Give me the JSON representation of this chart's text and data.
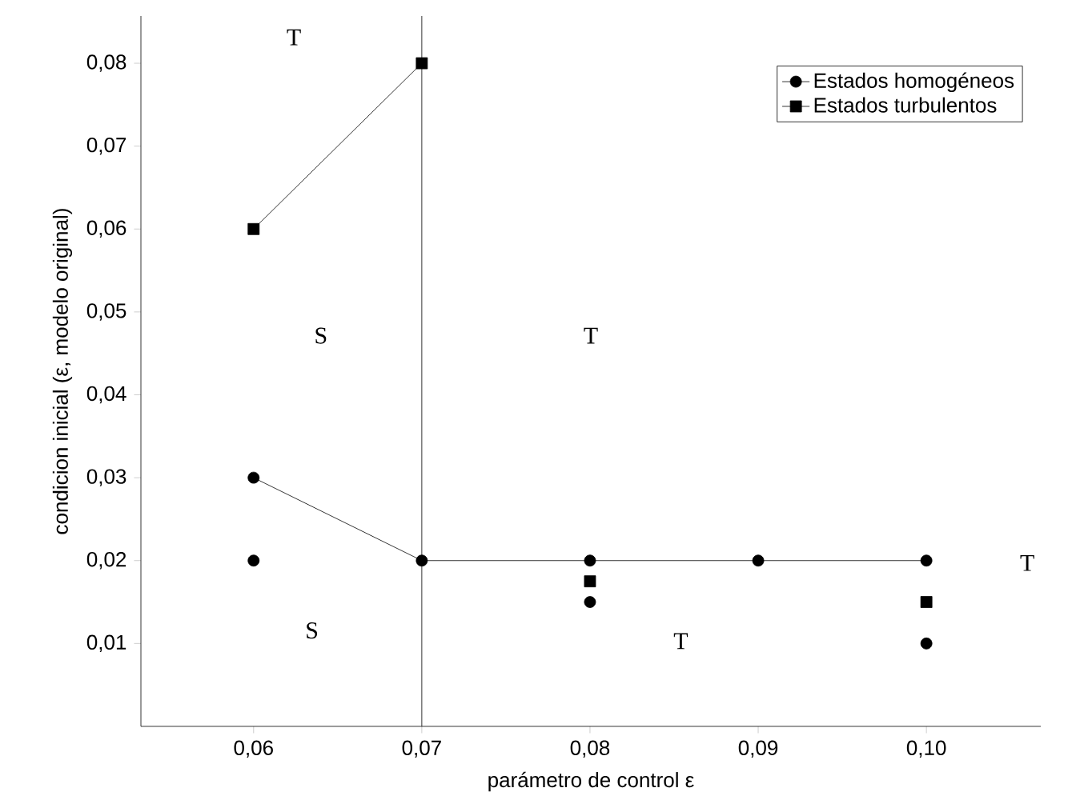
{
  "chart_data": {
    "type": "line",
    "xlabel": "parámetro de control ε",
    "ylabel": "condicion inicial (ε, modelo original)",
    "xlim": [
      0.0533,
      0.1068
    ],
    "ylim": [
      0.0,
      0.0857
    ],
    "xticks": [
      {
        "value": 0.06,
        "label": "0,06"
      },
      {
        "value": 0.07,
        "label": "0,07"
      },
      {
        "value": 0.08,
        "label": "0,08"
      },
      {
        "value": 0.09,
        "label": "0,09"
      },
      {
        "value": 0.1,
        "label": "0,10"
      }
    ],
    "yticks": [
      {
        "value": 0.01,
        "label": "0,01"
      },
      {
        "value": 0.02,
        "label": "0,02"
      },
      {
        "value": 0.03,
        "label": "0,03"
      },
      {
        "value": 0.04,
        "label": "0,04"
      },
      {
        "value": 0.05,
        "label": "0,05"
      },
      {
        "value": 0.06,
        "label": "0,06"
      },
      {
        "value": 0.07,
        "label": "0,07"
      },
      {
        "value": 0.08,
        "label": "0,08"
      }
    ],
    "legend": "top right",
    "grid": false,
    "series": [
      {
        "name": "Estados homogéneos",
        "marker": "circle",
        "color": "#000000",
        "x": [
          0.06,
          0.07,
          0.08,
          0.09,
          0.1
        ],
        "values": [
          0.03,
          0.02,
          0.02,
          0.02,
          0.02
        ]
      },
      {
        "name": "Estados turbulentos",
        "marker": "square",
        "color": "#000000",
        "x": [
          0.06,
          0.07
        ],
        "values": [
          0.06,
          0.08
        ]
      },
      {
        "type": "scatter",
        "marker": "circle",
        "color": "#000000",
        "x": [
          0.06,
          0.08,
          0.1
        ],
        "values": [
          0.02,
          0.015,
          0.01
        ]
      },
      {
        "type": "scatter",
        "marker": "square",
        "color": "#000000",
        "x": [
          0.08,
          0.1
        ],
        "values": [
          0.0175,
          0.015
        ]
      }
    ],
    "ref_lines": [
      {
        "axis": "x",
        "value": 0.07,
        "color": "#000000"
      }
    ],
    "annotations": [
      "T",
      "S",
      "T",
      "S",
      "T",
      "T"
    ]
  }
}
